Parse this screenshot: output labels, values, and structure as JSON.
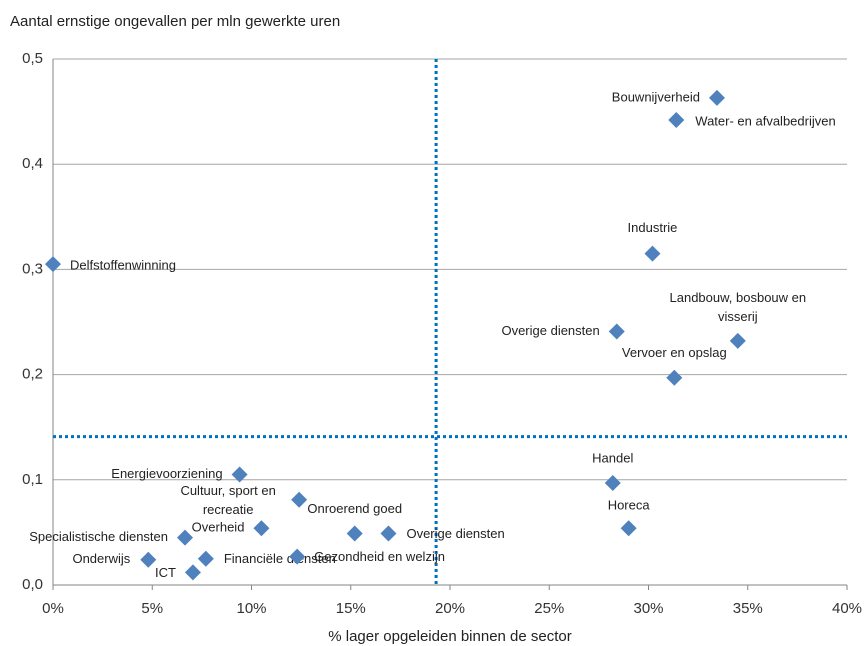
{
  "chart_data": {
    "type": "scatter",
    "title": "Aantal ernstige ongevallen per mln gewerkte uren",
    "x_label": "% lager opgeleiden binnen de sector",
    "color": "#4f81bd",
    "reference_color": "#0070c0",
    "grid": true,
    "xlim": [
      0,
      40
    ],
    "ylim": [
      0,
      0.5
    ],
    "xticks": [
      {
        "value": 0,
        "label": "0%"
      },
      {
        "value": 5,
        "label": "5%"
      },
      {
        "value": 10,
        "label": "10%"
      },
      {
        "value": 15,
        "label": "15%"
      },
      {
        "value": 20,
        "label": "20%"
      },
      {
        "value": 25,
        "label": "25%"
      },
      {
        "value": 30,
        "label": "30%"
      },
      {
        "value": 35,
        "label": "35%"
      },
      {
        "value": 40,
        "label": "40%"
      }
    ],
    "yticks": [
      {
        "value": 0,
        "label": "0,0"
      },
      {
        "value": 0.1,
        "label": "0,1"
      },
      {
        "value": 0.2,
        "label": "0,2"
      },
      {
        "value": 0.3,
        "label": "0,3"
      },
      {
        "value": 0.4,
        "label": "0,4"
      },
      {
        "value": 0.5,
        "label": "0,5"
      }
    ],
    "reference_lines": {
      "x": 19.3,
      "y": 0.141
    },
    "points": [
      {
        "label": "Bouwnijverheid",
        "x": 33.45,
        "y": 0.463
      },
      {
        "label": "Water- en afvalbedrijven",
        "x": 31.4,
        "y": 0.442
      },
      {
        "label": "Industrie",
        "x": 30.2,
        "y": 0.315
      },
      {
        "label": "Delfstoffenwinning",
        "x": 0,
        "y": 0.305
      },
      {
        "label": "Landbouw, bosbouw en visserij",
        "x": 34.5,
        "y": 0.232
      },
      {
        "label": "Overige diensten",
        "x": 28.4,
        "y": 0.241
      },
      {
        "label": "Vervoer en opslag",
        "x": 31.3,
        "y": 0.197
      },
      {
        "label": "Energievoorziening",
        "x": 9.4,
        "y": 0.105
      },
      {
        "label": "Handel",
        "x": 28.2,
        "y": 0.097
      },
      {
        "label": "Cultuur, sport en recreatie",
        "x": 12.4,
        "y": 0.081
      },
      {
        "label": "Horeca",
        "x": 29.0,
        "y": 0.054
      },
      {
        "label": "Overheid",
        "x": 10.5,
        "y": 0.054
      },
      {
        "label": "Onroerend goed",
        "x": 15.2,
        "y": 0.049
      },
      {
        "label": "Overige diensten",
        "x": 16.9,
        "y": 0.049
      },
      {
        "label": "Specialistische diensten",
        "x": 6.65,
        "y": 0.045
      },
      {
        "label": "Onderwijs",
        "x": 4.8,
        "y": 0.024
      },
      {
        "label": "Financiële diensten",
        "x": 7.7,
        "y": 0.025
      },
      {
        "label": "Gezondheid en welzijn",
        "x": 12.3,
        "y": 0.027
      },
      {
        "label": "ICT",
        "x": 7.05,
        "y": 0.012
      }
    ]
  }
}
